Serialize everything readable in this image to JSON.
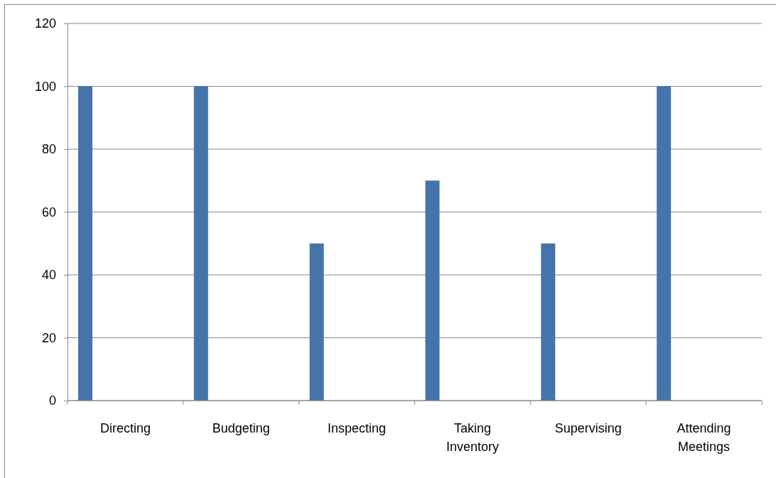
{
  "chart_data": {
    "type": "bar",
    "categories": [
      "Directing",
      "Budgeting",
      "Inspecting",
      "Taking Inventory",
      "Supervising",
      "Attending Meetings"
    ],
    "values": [
      100,
      100,
      50,
      70,
      50,
      100
    ],
    "color": "#4674aa",
    "ylim": [
      0,
      120
    ],
    "yticks": [
      0,
      20,
      40,
      60,
      80,
      100,
      120
    ],
    "grid": "y"
  }
}
